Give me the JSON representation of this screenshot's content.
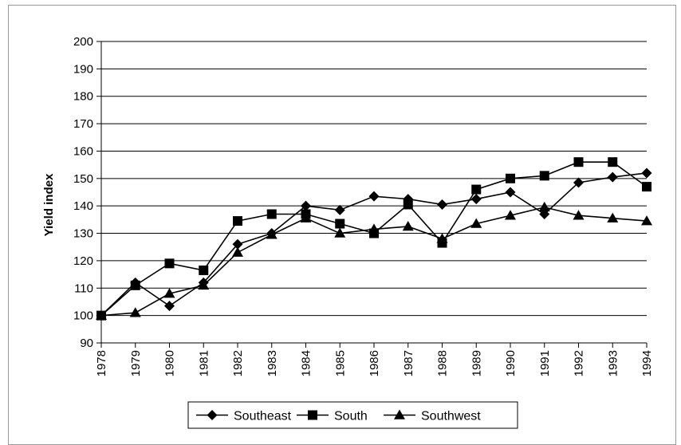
{
  "chart_data": {
    "type": "line",
    "title": "",
    "xlabel": "",
    "ylabel": "Yield index",
    "ylim": [
      90,
      200
    ],
    "yticks": [
      90,
      100,
      110,
      120,
      130,
      140,
      150,
      160,
      170,
      180,
      190,
      200
    ],
    "categories": [
      "1978",
      "1979",
      "1980",
      "1981",
      "1982",
      "1983",
      "1984",
      "1985",
      "1986",
      "1987",
      "1988",
      "1989",
      "1990",
      "1991",
      "1992",
      "1993",
      "1994"
    ],
    "grid": "horizontal",
    "legend": "bottom",
    "series": [
      {
        "name": "Southeast",
        "marker": "diamond",
        "color": "#000000",
        "values": [
          100,
          112,
          103.5,
          112,
          126,
          130,
          140,
          138.5,
          143.5,
          142.5,
          140.5,
          142.5,
          145,
          137,
          148.5,
          150.5,
          152
        ]
      },
      {
        "name": "South",
        "marker": "square",
        "color": "#000000",
        "values": [
          100,
          111,
          119,
          116.5,
          134.5,
          137,
          137,
          133.5,
          130,
          140.5,
          126.5,
          146,
          150,
          151,
          156,
          156,
          147
        ]
      },
      {
        "name": "Southwest",
        "marker": "triangle",
        "color": "#000000",
        "values": [
          100,
          101,
          108,
          111,
          123,
          129.5,
          135.5,
          130,
          131.5,
          132.5,
          128,
          133.5,
          136.5,
          139.5,
          136.5,
          135.5,
          134.5
        ]
      }
    ]
  }
}
